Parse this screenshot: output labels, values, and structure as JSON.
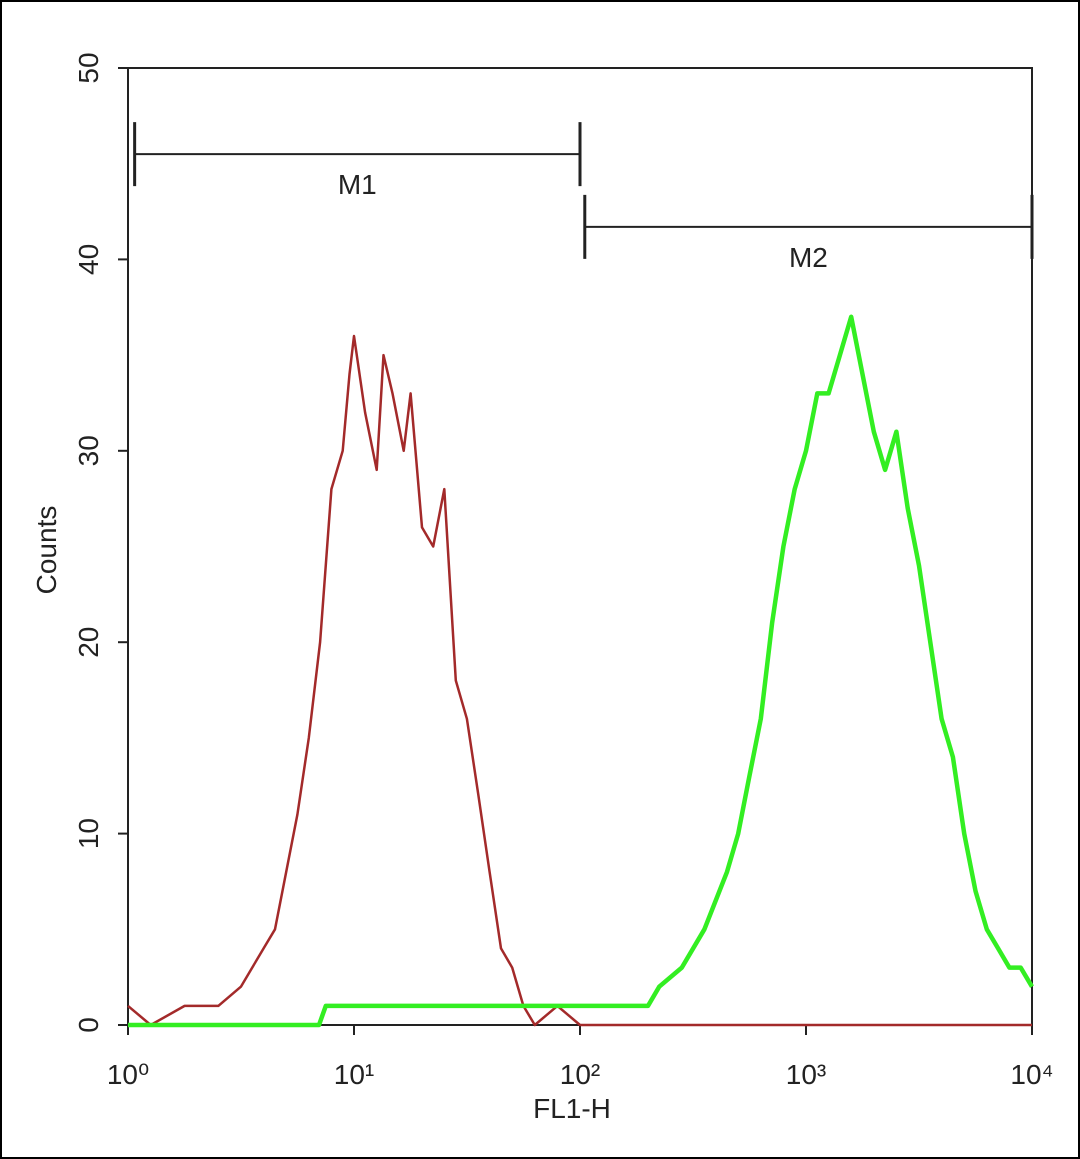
{
  "chart_data": {
    "type": "line",
    "xlabel": "FL1-H",
    "ylabel": "Counts",
    "xscale": "log",
    "xlim": [
      1,
      10000
    ],
    "xticks": [
      {
        "value": 1,
        "label": "10⁰"
      },
      {
        "value": 10,
        "label": "10¹"
      },
      {
        "value": 100,
        "label": "10²"
      },
      {
        "value": 1000,
        "label": "10³"
      },
      {
        "value": 10000,
        "label": "10⁴"
      }
    ],
    "ylim": [
      0,
      50
    ],
    "yticks": [
      0,
      10,
      20,
      30,
      40,
      50
    ],
    "markers": [
      {
        "label": "M1",
        "range": [
          1.07,
          100
        ],
        "y": 45.5
      },
      {
        "label": "M2",
        "range": [
          105,
          10000
        ],
        "y": 41.7
      }
    ],
    "series": [
      {
        "color": "#a32a2a",
        "x": [
          1,
          1.26,
          1.78,
          2.51,
          3.16,
          3.98,
          4.47,
          5.01,
          5.62,
          6.31,
          7.08,
          7.94,
          8.91,
          9.55,
          10,
          11.2,
          12.6,
          13.5,
          14.8,
          16.6,
          17.8,
          20,
          22.4,
          25.1,
          28.2,
          31.6,
          35.5,
          39.8,
          44.7,
          50.1,
          56.2,
          63.1,
          79.4,
          100,
          10000
        ],
        "values": [
          1,
          0,
          1,
          1,
          2,
          4,
          5,
          8,
          11,
          15,
          20,
          28,
          30,
          34,
          36,
          32,
          29,
          35,
          33,
          30,
          33,
          26,
          25,
          28,
          18,
          16,
          12,
          8,
          4,
          3,
          1,
          0,
          1,
          0,
          0
        ]
      },
      {
        "color": "#33ee22",
        "x": [
          1,
          7,
          7.5,
          200,
          224,
          282,
          355,
          447,
          501,
          562,
          631,
          708,
          794,
          891,
          1000,
          1122,
          1259,
          1413,
          1585,
          1778,
          1995,
          2239,
          2512,
          2818,
          3162,
          3548,
          3981,
          4467,
          5012,
          5623,
          6310,
          7079,
          7943,
          8913,
          10000
        ],
        "values": [
          0,
          0,
          1,
          1,
          2,
          3,
          5,
          8,
          10,
          13,
          16,
          21,
          25,
          28,
          30,
          33,
          33,
          35,
          37,
          34,
          31,
          29,
          31,
          27,
          24,
          20,
          16,
          14,
          10,
          7,
          5,
          4,
          3,
          3,
          2
        ]
      }
    ]
  }
}
